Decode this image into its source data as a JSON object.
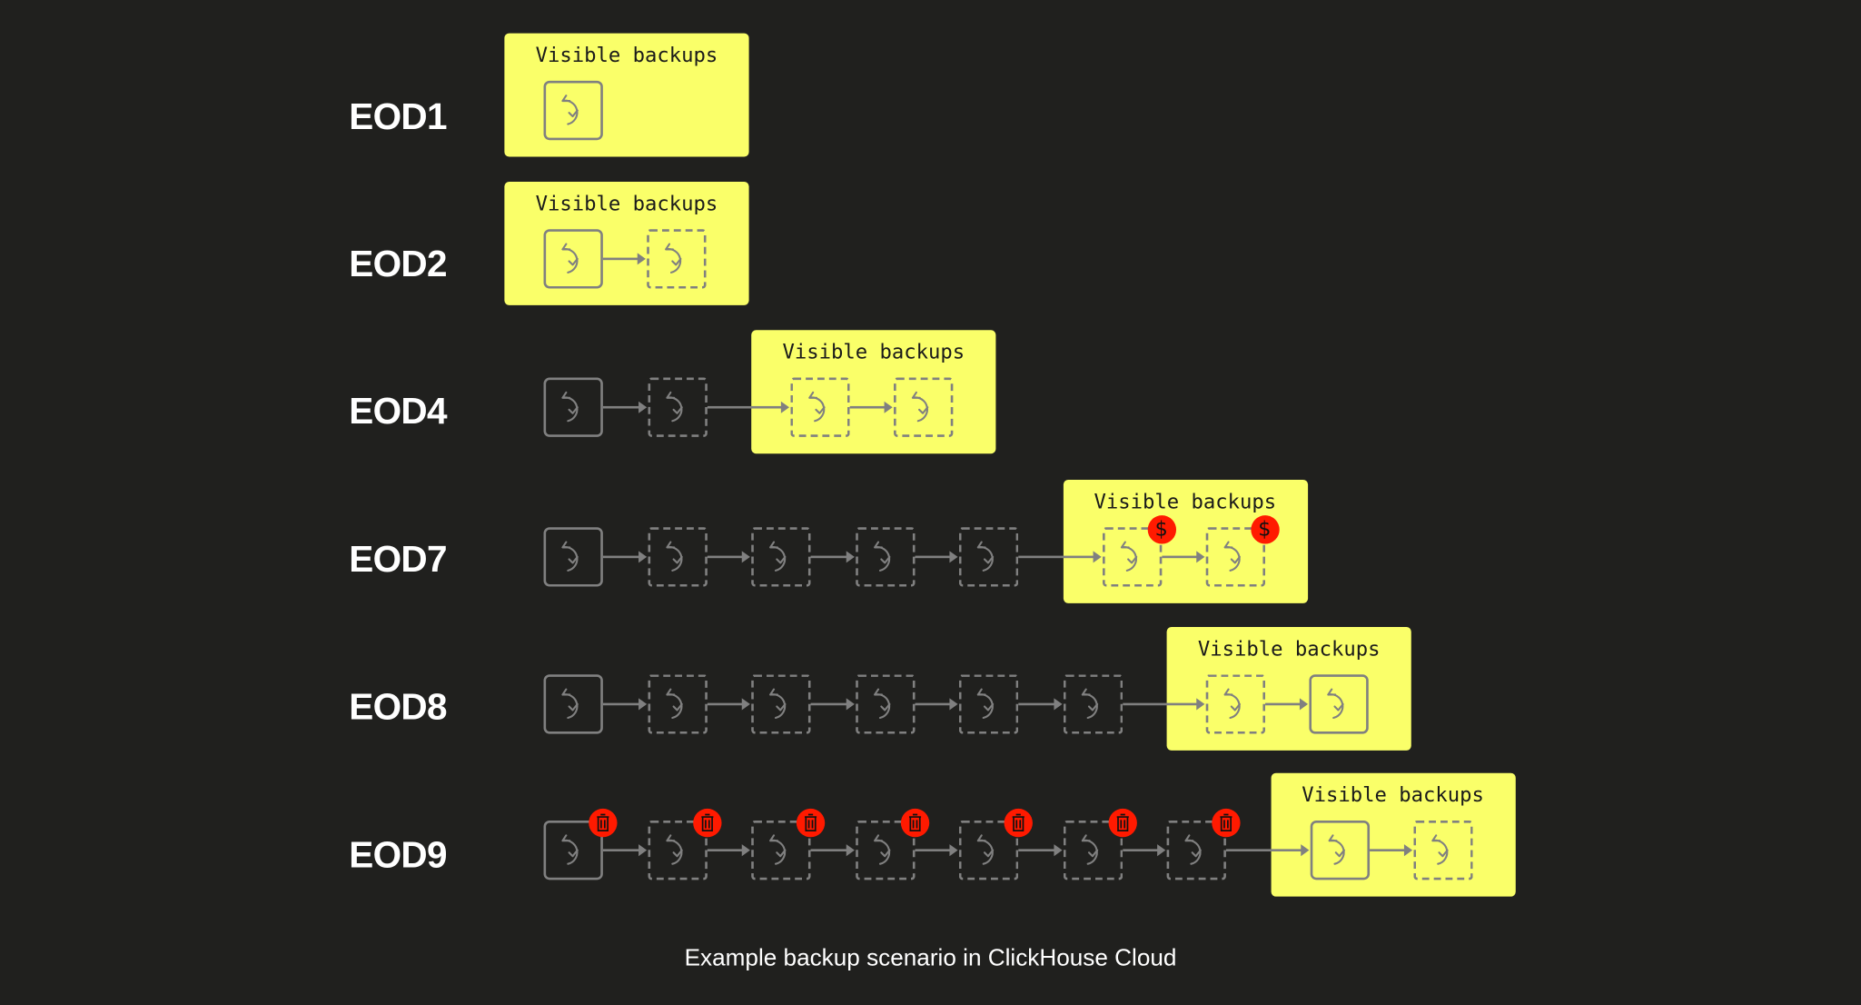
{
  "visible_label": "Visible backups",
  "caption": "Example backup scenario in ClickHouse Cloud",
  "colors": {
    "background": "#20201e",
    "highlight": "#faff69",
    "badge": "#ff1a00",
    "stroke": "#808080"
  },
  "rows": [
    {
      "label": "EOD1",
      "hidden": [],
      "visible": [
        {
          "style": "solid"
        }
      ]
    },
    {
      "label": "EOD2",
      "hidden": [],
      "visible": [
        {
          "style": "solid"
        },
        {
          "style": "dashed"
        }
      ]
    },
    {
      "label": "EOD4",
      "hidden": [
        {
          "style": "solid"
        },
        {
          "style": "dashed"
        }
      ],
      "visible": [
        {
          "style": "dashed"
        },
        {
          "style": "dashed"
        }
      ]
    },
    {
      "label": "EOD7",
      "hidden": [
        {
          "style": "solid"
        },
        {
          "style": "dashed"
        },
        {
          "style": "dashed"
        },
        {
          "style": "dashed"
        },
        {
          "style": "dashed"
        }
      ],
      "visible": [
        {
          "style": "dashed",
          "badge": "dollar"
        },
        {
          "style": "dashed",
          "badge": "dollar"
        }
      ]
    },
    {
      "label": "EOD8",
      "hidden": [
        {
          "style": "solid"
        },
        {
          "style": "dashed"
        },
        {
          "style": "dashed"
        },
        {
          "style": "dashed"
        },
        {
          "style": "dashed"
        },
        {
          "style": "dashed"
        }
      ],
      "visible": [
        {
          "style": "dashed"
        },
        {
          "style": "solid"
        }
      ]
    },
    {
      "label": "EOD9",
      "hidden": [
        {
          "style": "solid",
          "badge": "trash"
        },
        {
          "style": "dashed",
          "badge": "trash"
        },
        {
          "style": "dashed",
          "badge": "trash"
        },
        {
          "style": "dashed",
          "badge": "trash"
        },
        {
          "style": "dashed",
          "badge": "trash"
        },
        {
          "style": "dashed",
          "badge": "trash"
        },
        {
          "style": "dashed",
          "badge": "trash"
        }
      ],
      "visible": [
        {
          "style": "solid"
        },
        {
          "style": "dashed"
        }
      ]
    }
  ],
  "badge_text": {
    "dollar": "$"
  }
}
